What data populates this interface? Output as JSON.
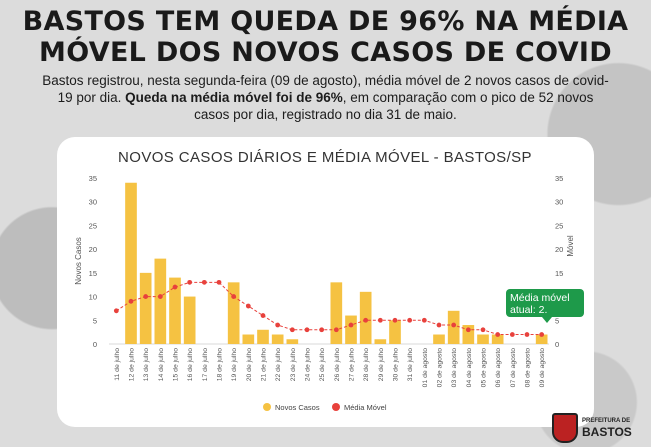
{
  "header": {
    "headline_line1": "BASTOS TEM QUEDA DE 96% NA MÉDIA",
    "headline_line2": "MÓVEL DOS NOVOS CASOS DE COVID",
    "summary_part1": "Bastos registrou, nesta segunda-feira (09 de agosto), média móvel de 2 novos casos de covid-19 por dia. ",
    "summary_bold": "Queda na média móvel foi de 96%",
    "summary_part2": ", em comparação com o pico de 52 novos casos por dia, registrado no dia 31 de maio."
  },
  "callout": "Média móvel atual: 2.",
  "logo": {
    "line1": "PREFEITURA DE",
    "line2": "BASTOS"
  },
  "colors": {
    "bar": "#f5c242",
    "line": "#e8413c",
    "callout": "#1e9a4a"
  },
  "chart_data": {
    "type": "bar",
    "title": "NOVOS CASOS DIÁRIOS E MÉDIA MÓVEL - BASTOS/SP",
    "ylabel": "Novos Casos",
    "ylabel_right": "Móvel",
    "ylim": [
      0,
      35
    ],
    "yticks": [
      "0",
      "5",
      "10",
      "15",
      "20",
      "25",
      "30",
      "35"
    ],
    "grid": false,
    "legend_position": "bottom",
    "categories": [
      "11 de julho",
      "12 de julho",
      "13 de julho",
      "14 de julho",
      "15 de julho",
      "16 de julho",
      "17 de julho",
      "18 de julho",
      "19 de julho",
      "20 de julho",
      "21 de julho",
      "22 de julho",
      "23 de julho",
      "24 de julho",
      "25 de julho",
      "26 de julho",
      "27 de julho",
      "28 de julho",
      "29 de julho",
      "30 de julho",
      "31 de julho",
      "01 de agosto",
      "02 de agosto",
      "03 de agosto",
      "04 de agosto",
      "05 de agosto",
      "06 de agosto",
      "07 de agosto",
      "08 de agosto",
      "09 de agosto"
    ],
    "series": [
      {
        "name": "Novos Casos",
        "type": "bar",
        "values": [
          0,
          34,
          15,
          18,
          14,
          10,
          0,
          0,
          13,
          2,
          3,
          2,
          1,
          0,
          0,
          13,
          6,
          11,
          1,
          5,
          0,
          0,
          2,
          7,
          4,
          2,
          2,
          0,
          0,
          2
        ]
      },
      {
        "name": "Média Móvel",
        "type": "line",
        "values": [
          7,
          9,
          10,
          10,
          12,
          13,
          13,
          13,
          10,
          8,
          6,
          4,
          3,
          3,
          3,
          3,
          4,
          5,
          5,
          5,
          5,
          5,
          4,
          4,
          3,
          3,
          2,
          2,
          2,
          2
        ]
      }
    ]
  }
}
